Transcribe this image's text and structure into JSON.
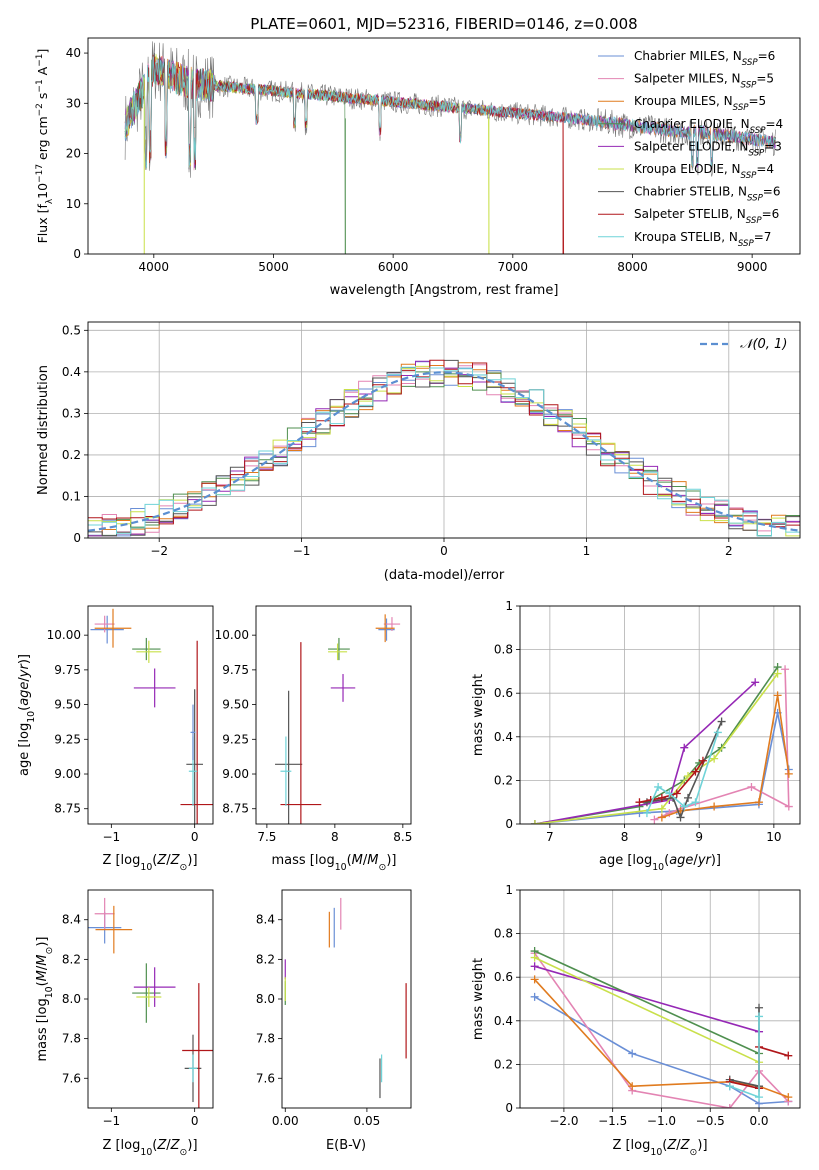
{
  "figure": {
    "title": "PLATE=0601, MJD=52316, FIBERID=0146, z=0.008"
  },
  "chart_data": [
    {
      "id": "spectrum",
      "type": "line",
      "xlabel": "wavelength [Angstrom, rest frame]",
      "ylabel": "Flux [fλ10⁻¹⁷ erg cm⁻² s⁻¹ A⁻¹]",
      "xlim": [
        3450,
        9400
      ],
      "ylim": [
        0,
        43
      ],
      "xticks": [
        4000,
        5000,
        6000,
        7000,
        8000,
        9000
      ],
      "yticks": [
        0,
        10,
        20,
        30,
        40
      ],
      "grid": false,
      "legend": "top-right",
      "model_edges": [
        {
          "series": 3,
          "x": 5600
        },
        {
          "series": 5,
          "x": 6800
        },
        {
          "series": 7,
          "x": 7420
        },
        {
          "series": 5,
          "x": 3920
        }
      ]
    },
    {
      "id": "residuals",
      "type": "line",
      "xlabel": "(data-model)/error",
      "ylabel": "Normed distribution",
      "xlim": [
        -2.5,
        2.5
      ],
      "ylim": [
        0,
        0.52
      ],
      "xticks": [
        -2,
        -1,
        0,
        1,
        2
      ],
      "yticks": [
        0.0,
        0.1,
        0.2,
        0.3,
        0.4,
        0.5
      ],
      "grid": true,
      "legend": "top-right",
      "legend_label": "𝒩(0, 1)",
      "bins": 50
    },
    {
      "id": "age-vs-Z",
      "type": "scatter",
      "xlabel": "Z [log₁₀(Z/Z⊙)]",
      "ylabel": "age  [log₁₀(age/yr)]",
      "xlim": [
        -1.28,
        0.22
      ],
      "ylim": [
        8.64,
        10.21
      ],
      "xticks": [
        -1,
        0
      ],
      "yticks": [
        8.75,
        9.0,
        9.25,
        9.5,
        9.75,
        10.0
      ],
      "ytick_labels": [
        "8.75",
        "9.00",
        "9.25",
        "9.50",
        "9.75",
        "10.00"
      ],
      "points": [
        {
          "s": 0,
          "x": -1.05,
          "y": 10.04,
          "ex": 0.2,
          "ey": 0.1
        },
        {
          "s": 1,
          "x": -1.08,
          "y": 10.08,
          "ex": 0.12,
          "ey": 0.06
        },
        {
          "s": 2,
          "x": -0.98,
          "y": 10.05,
          "ex": 0.22,
          "ey": 0.14
        },
        {
          "s": 3,
          "x": -0.58,
          "y": 9.9,
          "ex": 0.17,
          "ey": 0.08
        },
        {
          "s": 4,
          "x": -0.48,
          "y": 9.62,
          "ex": 0.25,
          "ey": 0.14
        },
        {
          "s": 5,
          "x": -0.55,
          "y": 9.88,
          "ex": 0.15,
          "ey": 0.08
        },
        {
          "s": 6,
          "x": 0.0,
          "y": 9.07,
          "ex": 0.1,
          "ey": 0.54
        },
        {
          "s": 7,
          "x": 0.03,
          "y": 8.78,
          "ex": 0.2,
          "ey": 1.18
        },
        {
          "s": 8,
          "x": -0.02,
          "y": 9.02,
          "ex": 0.05,
          "ey": 0.25
        },
        {
          "s": 0,
          "x": -0.02,
          "y": 9.3,
          "ex": 0.03,
          "ey": 0.2
        }
      ]
    },
    {
      "id": "age-vs-mass",
      "type": "scatter",
      "xlabel": "mass [log₁₀(M/M⊙)]",
      "xlim": [
        7.42,
        8.56
      ],
      "ylim": [
        8.64,
        10.21
      ],
      "xticks": [
        7.5,
        8.0,
        8.5
      ],
      "yticks": [
        8.75,
        9.0,
        9.25,
        9.5,
        9.75,
        10.0
      ],
      "ytick_labels": [
        "8.75",
        "9.00",
        "9.25",
        "9.50",
        "9.75",
        "10.00"
      ],
      "points": [
        {
          "s": 0,
          "x": 8.38,
          "y": 10.04,
          "ex": 0.06,
          "ey": 0.08
        },
        {
          "s": 1,
          "x": 8.42,
          "y": 10.08,
          "ex": 0.06,
          "ey": 0.05
        },
        {
          "s": 2,
          "x": 8.37,
          "y": 10.05,
          "ex": 0.07,
          "ey": 0.1
        },
        {
          "s": 3,
          "x": 8.03,
          "y": 9.9,
          "ex": 0.08,
          "ey": 0.08
        },
        {
          "s": 4,
          "x": 8.06,
          "y": 9.62,
          "ex": 0.09,
          "ey": 0.1
        },
        {
          "s": 5,
          "x": 8.02,
          "y": 9.88,
          "ex": 0.07,
          "ey": 0.06
        },
        {
          "s": 6,
          "x": 7.66,
          "y": 9.07,
          "ex": 0.1,
          "ey": 0.53
        },
        {
          "s": 7,
          "x": 7.75,
          "y": 8.78,
          "ex": 0.15,
          "ey": 1.17
        },
        {
          "s": 8,
          "x": 7.64,
          "y": 9.02,
          "ex": 0.04,
          "ey": 0.25
        }
      ]
    },
    {
      "id": "weight-vs-age",
      "type": "line",
      "xlabel": "age  [log₁₀(age/yr)]",
      "ylabel": "mass weight",
      "xlim": [
        6.6,
        10.35
      ],
      "ylim": [
        0,
        1
      ],
      "xticks": [
        7,
        8,
        9,
        10
      ],
      "yticks": [
        0.0,
        0.2,
        0.4,
        0.6,
        0.8,
        1.0
      ],
      "grid": true,
      "series": [
        {
          "s": 0,
          "x": [
            6.8,
            8.2,
            8.7,
            9.8,
            10.05,
            10.2
          ],
          "y": [
            0,
            0.05,
            0.06,
            0.09,
            0.51,
            0.25
          ]
        },
        {
          "s": 1,
          "x": [
            8.4,
            8.6,
            8.75,
            9.7,
            10.2,
            10.15
          ],
          "y": [
            0.02,
            0.05,
            0.07,
            0.17,
            0.08,
            0.71
          ]
        },
        {
          "s": 2,
          "x": [
            8.5,
            8.75,
            9.2,
            9.8,
            10.05,
            10.2
          ],
          "y": [
            0.03,
            0.06,
            0.08,
            0.1,
            0.59,
            0.23
          ]
        },
        {
          "s": 3,
          "x": [
            6.8,
            8.2,
            8.8,
            9.0,
            9.3,
            10.05
          ],
          "y": [
            0,
            0.08,
            0.2,
            0.28,
            0.35,
            0.72
          ]
        },
        {
          "s": 4,
          "x": [
            6.8,
            8.6,
            8.8,
            9.75
          ],
          "y": [
            0,
            0.11,
            0.35,
            0.65
          ]
        },
        {
          "s": 5,
          "x": [
            6.8,
            8.5,
            8.85,
            9.2,
            10.05
          ],
          "y": [
            0,
            0.07,
            0.22,
            0.3,
            0.69
          ]
        },
        {
          "s": 6,
          "x": [
            8.3,
            8.65,
            8.75,
            8.85,
            9.3
          ],
          "y": [
            0.1,
            0.12,
            0.03,
            0.12,
            0.47
          ]
        },
        {
          "s": 7,
          "x": [
            8.2,
            8.35,
            8.5,
            8.7,
            8.95,
            9.05
          ],
          "y": [
            0.1,
            0.11,
            0.12,
            0.14,
            0.24,
            0.29
          ]
        },
        {
          "s": 8,
          "x": [
            8.3,
            8.45,
            8.6,
            8.8,
            8.95,
            9.25
          ],
          "y": [
            0.05,
            0.17,
            0.14,
            0.08,
            0.1,
            0.42
          ]
        }
      ]
    },
    {
      "id": "mass-vs-Z",
      "type": "scatter",
      "xlabel": "Z [log₁₀(Z/Z⊙)]",
      "ylabel": "mass [log₁₀(M/M⊙)]",
      "xlim": [
        -1.28,
        0.22
      ],
      "ylim": [
        7.45,
        8.55
      ],
      "xticks": [
        -1,
        0
      ],
      "yticks": [
        7.6,
        7.8,
        8.0,
        8.2,
        8.4
      ],
      "ytick_labels": [
        "7.6",
        "7.8",
        "8.0",
        "8.2",
        "8.4"
      ],
      "points": [
        {
          "s": 0,
          "x": -1.08,
          "y": 8.36,
          "ex": 0.2,
          "ey": 0.08
        },
        {
          "s": 1,
          "x": -1.08,
          "y": 8.43,
          "ex": 0.12,
          "ey": 0.08
        },
        {
          "s": 2,
          "x": -0.97,
          "y": 8.35,
          "ex": 0.22,
          "ey": 0.12
        },
        {
          "s": 3,
          "x": -0.58,
          "y": 8.03,
          "ex": 0.17,
          "ey": 0.15
        },
        {
          "s": 4,
          "x": -0.48,
          "y": 8.06,
          "ex": 0.25,
          "ey": 0.1
        },
        {
          "s": 5,
          "x": -0.55,
          "y": 8.01,
          "ex": 0.15,
          "ey": 0.05
        },
        {
          "s": 6,
          "x": -0.02,
          "y": 7.65,
          "ex": 0.1,
          "ey": 0.17
        },
        {
          "s": 7,
          "x": 0.05,
          "y": 7.74,
          "ex": 0.2,
          "ey": 0.34
        },
        {
          "s": 8,
          "x": -0.02,
          "y": 7.65,
          "ex": 0.05,
          "ey": 0.07
        }
      ]
    },
    {
      "id": "mass-vs-ebv",
      "type": "scatter",
      "xlabel": "E(B-V)",
      "xlim": [
        -0.002,
        0.077
      ],
      "ylim": [
        7.45,
        8.55
      ],
      "xticks": [
        0.0,
        0.05
      ],
      "xtick_labels": [
        "0.00",
        "0.05"
      ],
      "yticks": [
        7.6,
        7.8,
        8.0,
        8.2,
        8.4
      ],
      "ytick_labels": [
        "7.6",
        "7.8",
        "8.0",
        "8.2",
        "8.4"
      ],
      "points": [
        {
          "s": 0,
          "x": 0.03,
          "y": 8.36,
          "ex": 0,
          "ey": 0.1
        },
        {
          "s": 1,
          "x": 0.034,
          "y": 8.43,
          "ex": 0,
          "ey": 0.08
        },
        {
          "s": 2,
          "x": 0.027,
          "y": 8.35,
          "ex": 0,
          "ey": 0.09
        },
        {
          "s": 3,
          "x": 0.0,
          "y": 8.03,
          "ex": 0,
          "ey": 0.06
        },
        {
          "s": 4,
          "x": 0.0,
          "y": 8.15,
          "ex": 0,
          "ey": 0.05
        },
        {
          "s": 5,
          "x": 0.0,
          "y": 8.05,
          "ex": 0,
          "ey": 0.06
        },
        {
          "s": 6,
          "x": 0.058,
          "y": 7.6,
          "ex": 0,
          "ey": 0.1
        },
        {
          "s": 7,
          "x": 0.074,
          "y": 7.89,
          "ex": 0,
          "ey": 0.19
        },
        {
          "s": 8,
          "x": 0.059,
          "y": 7.65,
          "ex": 0,
          "ey": 0.07
        }
      ]
    },
    {
      "id": "weight-vs-Z",
      "type": "line",
      "xlabel": "Z [log₁₀(Z/Z⊙)]",
      "ylabel": "mass weight",
      "xlim": [
        -2.45,
        0.42
      ],
      "ylim": [
        0,
        1
      ],
      "xticks": [
        -2.0,
        -1.5,
        -1.0,
        -0.5,
        0.0
      ],
      "xtick_labels": [
        "−2.0",
        "−1.5",
        "−1.0",
        "−0.5",
        "0.0"
      ],
      "yticks": [
        0.0,
        0.2,
        0.4,
        0.6,
        0.8,
        1.0
      ],
      "grid": true,
      "series": [
        {
          "s": 0,
          "x": [
            -2.3,
            -1.3,
            -0.3,
            0.0,
            0.3
          ],
          "y": [
            0.51,
            0.25,
            0.1,
            0.02,
            0.03
          ]
        },
        {
          "s": 1,
          "x": [
            -2.3,
            -1.3,
            -0.3,
            0.0,
            0.3
          ],
          "y": [
            0.71,
            0.08,
            0.0,
            0.17,
            0.03
          ]
        },
        {
          "s": 2,
          "x": [
            -2.3,
            -1.3,
            -0.3,
            0.0,
            0.3
          ],
          "y": [
            0.59,
            0.1,
            0.12,
            0.1,
            0.05
          ]
        },
        {
          "s": 3,
          "x": [
            -2.3,
            0.0
          ],
          "y": [
            0.72,
            0.25
          ]
        },
        {
          "s": 4,
          "x": [
            -2.3,
            0.0
          ],
          "y": [
            0.65,
            0.35
          ]
        },
        {
          "s": 5,
          "x": [
            -2.3,
            0.0
          ],
          "y": [
            0.69,
            0.21
          ]
        },
        {
          "s": 6,
          "x": [
            -0.3,
            0.0,
            0.0
          ],
          "y": [
            0.13,
            0.1,
            0.46
          ]
        },
        {
          "s": 7,
          "x": [
            -0.3,
            0.0,
            0.0,
            0.3
          ],
          "y": [
            0.12,
            0.09,
            0.28,
            0.24
          ]
        },
        {
          "s": 8,
          "x": [
            -0.3,
            0.0,
            0.0
          ],
          "y": [
            0.1,
            0.05,
            0.42
          ]
        }
      ]
    }
  ],
  "legend_series": [
    {
      "name": "Chabrier MILES",
      "n": "6",
      "color": "#6a8fd6"
    },
    {
      "name": "Salpeter MILES",
      "n": "5",
      "color": "#e384b3"
    },
    {
      "name": "Kroupa MILES",
      "n": "5",
      "color": "#e07b1f"
    },
    {
      "name": "Chabrier ELODIE",
      "n": "4",
      "color": "#4f8f4f"
    },
    {
      "name": "Salpeter ELODIE",
      "n": "3",
      "color": "#9528b5"
    },
    {
      "name": "Kroupa ELODIE",
      "n": "4",
      "color": "#c9e04a"
    },
    {
      "name": "Chabrier STELIB",
      "n": "6",
      "color": "#555555"
    },
    {
      "name": "Salpeter STELIB",
      "n": "6",
      "color": "#b0161a"
    },
    {
      "name": "Kroupa STELIB",
      "n": "7",
      "color": "#6fd3d8"
    }
  ],
  "legend_subscript": "SSP",
  "normal_color": "#5b8fd1"
}
